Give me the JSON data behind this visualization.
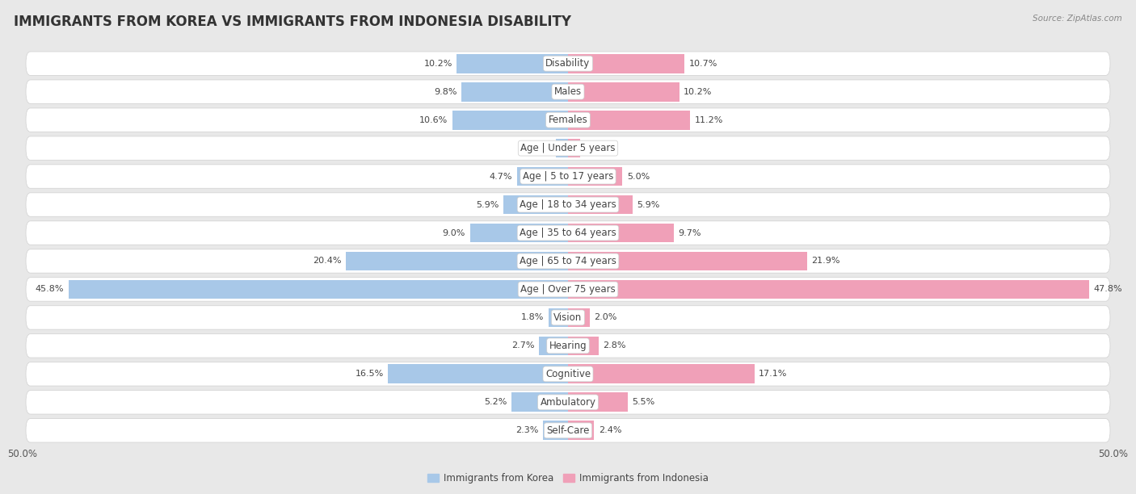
{
  "title": "IMMIGRANTS FROM KOREA VS IMMIGRANTS FROM INDONESIA DISABILITY",
  "source": "Source: ZipAtlas.com",
  "categories": [
    "Disability",
    "Males",
    "Females",
    "Age | Under 5 years",
    "Age | 5 to 17 years",
    "Age | 18 to 34 years",
    "Age | 35 to 64 years",
    "Age | 65 to 74 years",
    "Age | Over 75 years",
    "Vision",
    "Hearing",
    "Cognitive",
    "Ambulatory",
    "Self-Care"
  ],
  "korea_values": [
    10.2,
    9.8,
    10.6,
    1.1,
    4.7,
    5.9,
    9.0,
    20.4,
    45.8,
    1.8,
    2.7,
    16.5,
    5.2,
    2.3
  ],
  "indonesia_values": [
    10.7,
    10.2,
    11.2,
    1.1,
    5.0,
    5.9,
    9.7,
    21.9,
    47.8,
    2.0,
    2.8,
    17.1,
    5.5,
    2.4
  ],
  "korea_color": "#a8c8e8",
  "indonesia_color": "#f0a0b8",
  "korea_color_dark": "#5b9fd4",
  "indonesia_color_dark": "#e8608a",
  "background_color": "#e8e8e8",
  "row_bg_color": "#ffffff",
  "row_border_color": "#d0d0d0",
  "max_value": 50.0,
  "legend_korea": "Immigrants from Korea",
  "legend_indonesia": "Immigrants from Indonesia",
  "title_fontsize": 12,
  "label_fontsize": 8.5,
  "value_fontsize": 8,
  "axis_tick_fontsize": 8.5
}
